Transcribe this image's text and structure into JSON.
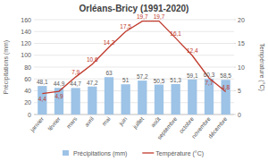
{
  "chart_data": {
    "type": "bar",
    "title": "Orléans-Bricy (1991-2020)",
    "categories": [
      "janvier",
      "février",
      "mars",
      "avril",
      "mai",
      "juin",
      "juillet",
      "août",
      "septembre",
      "octobre",
      "novembre",
      "décembre"
    ],
    "series": [
      {
        "name": "Précipitations (mm)",
        "type": "bar",
        "color": "#9dc3e6",
        "values": [
          48.1,
          44.9,
          44.7,
          47.2,
          63,
          51,
          57.2,
          50.5,
          51.3,
          59.1,
          60.3,
          58.5
        ],
        "value_labels": [
          "48,1",
          "44,9",
          "44,7",
          "47,2",
          "63",
          "51",
          "57,2",
          "50,5",
          "51,3",
          "59,1",
          "60,3",
          "58,5"
        ]
      },
      {
        "name": "Température (°C)",
        "type": "line",
        "color": "#c0392b",
        "axis": "y2",
        "values": [
          4.4,
          4.9,
          7.9,
          10.6,
          14.2,
          17.5,
          19.7,
          19.7,
          16.1,
          12.4,
          7.7,
          4.8
        ],
        "value_labels": [
          "4,4",
          "4,9",
          "7,9",
          "10,6",
          "14,2",
          "17,5",
          "19,7",
          "19,7",
          "16,1",
          "12,4",
          "7,7",
          "4,8"
        ]
      }
    ],
    "y_label": "Précipitations (mm)",
    "y2_label": "Température (°C)",
    "ylim": [
      0,
      160
    ],
    "yticks": [
      0,
      20,
      40,
      60,
      80,
      100,
      120,
      140,
      160
    ],
    "y2lim": [
      0,
      20
    ],
    "y2ticks": [
      0,
      5,
      10,
      15,
      20
    ],
    "grid": true,
    "legend": "bottom",
    "data_labels": true
  }
}
